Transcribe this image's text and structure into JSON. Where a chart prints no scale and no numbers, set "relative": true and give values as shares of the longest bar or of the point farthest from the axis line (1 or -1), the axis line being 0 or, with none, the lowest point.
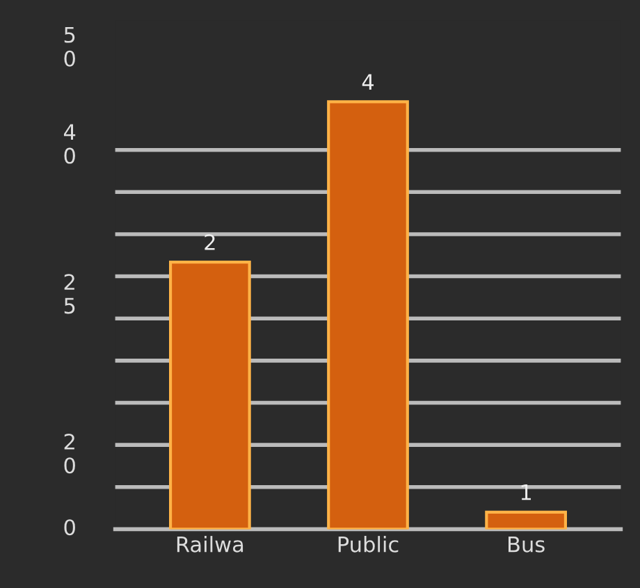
{
  "chart_data": {
    "type": "bar",
    "categories": [
      "Railwa",
      "Public",
      "Bus"
    ],
    "values": [
      0.625,
      1,
      0.04
    ],
    "relative": true,
    "color": "#d4600f",
    "annotations": [
      {
        "text": "2",
        "x": "Railwa",
        "y": 0.625
      },
      {
        "text": "4",
        "x": "Public",
        "y": 1
      },
      {
        "text": "1",
        "x": "Bus",
        "y": 0.04
      },
      "50",
      "40",
      "25",
      "20",
      "0"
    ],
    "grid": "y"
  }
}
